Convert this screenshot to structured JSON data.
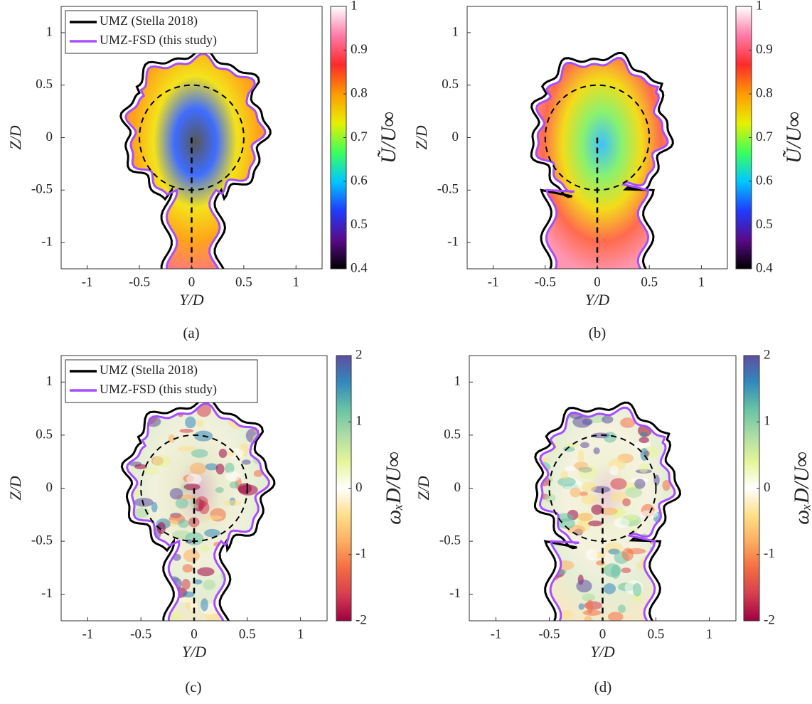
{
  "chart_data": [
    {
      "type": "heatmap",
      "caption": "(a)",
      "xlabel": "Y/D",
      "ylabel": "Z/D",
      "xlim": [
        -1.25,
        1.25
      ],
      "ylim": [
        -1.25,
        1.25
      ],
      "xticks": [
        -1,
        -0.5,
        0,
        0.5,
        1
      ],
      "yticks": [
        -1,
        -0.5,
        0,
        0.5,
        1
      ],
      "legend": [
        {
          "label": "UMZ (Stella 2018)",
          "color": "#000000"
        },
        {
          "label": "UMZ-FSD (this study)",
          "color": "#a64dff"
        }
      ],
      "colorbar": {
        "label": "Ũ/U∞",
        "lim": [
          0.4,
          1
        ],
        "ticks": [
          0.4,
          0.5,
          0.6,
          0.7,
          0.8,
          0.9,
          1
        ],
        "colormap": [
          "#000000",
          "#5a0a8a",
          "#1f3cff",
          "#00c8ff",
          "#3cff5a",
          "#e8f000",
          "#ff9a00",
          "#ff2a2a",
          "#ff7aa8",
          "#ffffff"
        ]
      }
    },
    {
      "type": "heatmap",
      "caption": "(b)",
      "xlabel": "Y/D",
      "ylabel": "Z/D",
      "xlim": [
        -1.25,
        1.25
      ],
      "ylim": [
        -1.25,
        1.25
      ],
      "xticks": [
        -1,
        -0.5,
        0,
        0.5,
        1
      ],
      "yticks": [
        -1,
        -0.5,
        0,
        0.5,
        1
      ],
      "contour_colors": [
        "#000000",
        "#a64dff"
      ],
      "colorbar": {
        "label": "Ũ/U∞",
        "lim": [
          0.4,
          1
        ],
        "ticks": [
          0.4,
          0.5,
          0.6,
          0.7,
          0.8,
          0.9,
          1
        ],
        "colormap": [
          "#000000",
          "#5a0a8a",
          "#1f3cff",
          "#00c8ff",
          "#3cff5a",
          "#e8f000",
          "#ff9a00",
          "#ff2a2a",
          "#ff7aa8",
          "#ffffff"
        ]
      }
    },
    {
      "type": "heatmap",
      "caption": "(c)",
      "xlabel": "Y/D",
      "ylabel": "Z/D",
      "xlim": [
        -1.25,
        1.25
      ],
      "ylim": [
        -1.25,
        1.25
      ],
      "xticks": [
        -1,
        -0.5,
        0,
        0.5,
        1
      ],
      "yticks": [
        -1,
        -0.5,
        0,
        0.5,
        1
      ],
      "legend": [
        {
          "label": "UMZ (Stella 2018)",
          "color": "#000000"
        },
        {
          "label": "UMZ-FSD (this study)",
          "color": "#a64dff"
        }
      ],
      "colorbar": {
        "label": "ωₓD/U∞",
        "lim": [
          -2,
          2
        ],
        "ticks": [
          -2,
          -1,
          0,
          1,
          2
        ],
        "colormap": [
          "#9e0142",
          "#d53e4f",
          "#f46d43",
          "#fdae61",
          "#fee08b",
          "#ffffff",
          "#e6f598",
          "#abdda4",
          "#66c2a5",
          "#3288bd",
          "#5e4fa2"
        ]
      }
    },
    {
      "type": "heatmap",
      "caption": "(d)",
      "xlabel": "Y/D",
      "ylabel": "Z/D",
      "xlim": [
        -1.25,
        1.25
      ],
      "ylim": [
        -1.25,
        1.25
      ],
      "xticks": [
        -1,
        -0.5,
        0,
        0.5,
        1
      ],
      "yticks": [
        -1,
        -0.5,
        0,
        0.5,
        1
      ],
      "contour_colors": [
        "#000000",
        "#a64dff"
      ],
      "colorbar": {
        "label": "ωₓD/U∞",
        "lim": [
          -2,
          2
        ],
        "ticks": [
          -2,
          -1,
          0,
          1,
          2
        ],
        "colormap": [
          "#9e0142",
          "#d53e4f",
          "#f46d43",
          "#fdae61",
          "#fee08b",
          "#ffffff",
          "#e6f598",
          "#abdda4",
          "#66c2a5",
          "#3288bd",
          "#5e4fa2"
        ]
      }
    }
  ]
}
